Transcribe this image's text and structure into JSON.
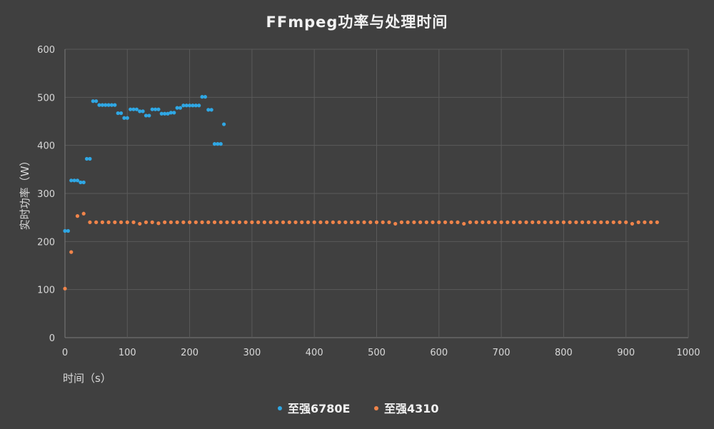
{
  "chart_data": {
    "type": "scatter",
    "title": "FFmpeg功率与处理时间",
    "xlabel": "时间（s）",
    "ylabel": "实时功率（W）",
    "xlim": [
      0,
      1000
    ],
    "ylim": [
      0,
      600
    ],
    "xticks": [
      0,
      100,
      200,
      300,
      400,
      500,
      600,
      700,
      800,
      900,
      1000
    ],
    "yticks": [
      0,
      100,
      200,
      300,
      400,
      500,
      600
    ],
    "grid": true,
    "legend_position": "bottom",
    "series": [
      {
        "name": "至强6780E",
        "color": "#2fa7e4",
        "x": [
          0,
          5,
          10,
          15,
          20,
          25,
          30,
          35,
          40,
          45,
          50,
          55,
          60,
          65,
          70,
          75,
          80,
          85,
          90,
          95,
          100,
          105,
          110,
          115,
          120,
          125,
          130,
          135,
          140,
          145,
          150,
          155,
          160,
          165,
          170,
          175,
          180,
          185,
          190,
          195,
          200,
          205,
          210,
          215,
          220,
          225,
          230,
          235,
          240,
          245,
          250,
          255
        ],
        "y": [
          222,
          222,
          327,
          327,
          327,
          323,
          323,
          372,
          372,
          492,
          492,
          484,
          484,
          484,
          484,
          484,
          484,
          467,
          467,
          457,
          457,
          475,
          475,
          475,
          471,
          471,
          462,
          462,
          475,
          475,
          475,
          466,
          466,
          466,
          468,
          468,
          478,
          478,
          483,
          483,
          483,
          483,
          483,
          483,
          501,
          501,
          474,
          474,
          403,
          403,
          403,
          444
        ]
      },
      {
        "name": "至强4310",
        "color": "#f0844a",
        "x": [
          0,
          10,
          20,
          30,
          40,
          50,
          60,
          70,
          80,
          90,
          100,
          110,
          120,
          130,
          140,
          150,
          160,
          170,
          180,
          190,
          200,
          210,
          220,
          230,
          240,
          250,
          260,
          270,
          280,
          290,
          300,
          310,
          320,
          330,
          340,
          350,
          360,
          370,
          380,
          390,
          400,
          410,
          420,
          430,
          440,
          450,
          460,
          470,
          480,
          490,
          500,
          510,
          520,
          530,
          540,
          550,
          560,
          570,
          580,
          590,
          600,
          610,
          620,
          630,
          640,
          650,
          660,
          670,
          680,
          690,
          700,
          710,
          720,
          730,
          740,
          750,
          760,
          770,
          780,
          790,
          800,
          810,
          820,
          830,
          840,
          850,
          860,
          870,
          880,
          890,
          900,
          910,
          920,
          930,
          940,
          950
        ],
        "y": [
          102,
          178,
          253,
          258,
          240,
          240,
          240,
          240,
          240,
          240,
          240,
          240,
          237,
          240,
          240,
          238,
          240,
          240,
          240,
          240,
          240,
          240,
          240,
          240,
          240,
          240,
          240,
          240,
          240,
          240,
          240,
          240,
          240,
          240,
          240,
          240,
          240,
          240,
          240,
          240,
          240,
          240,
          240,
          240,
          240,
          240,
          240,
          240,
          240,
          240,
          240,
          240,
          240,
          237,
          240,
          240,
          240,
          240,
          240,
          240,
          240,
          240,
          240,
          240,
          237,
          240,
          240,
          240,
          240,
          240,
          240,
          240,
          240,
          240,
          240,
          240,
          240,
          240,
          240,
          240,
          240,
          240,
          240,
          240,
          240,
          240,
          240,
          240,
          240,
          240,
          240,
          237,
          240,
          240,
          240,
          240
        ]
      }
    ]
  }
}
